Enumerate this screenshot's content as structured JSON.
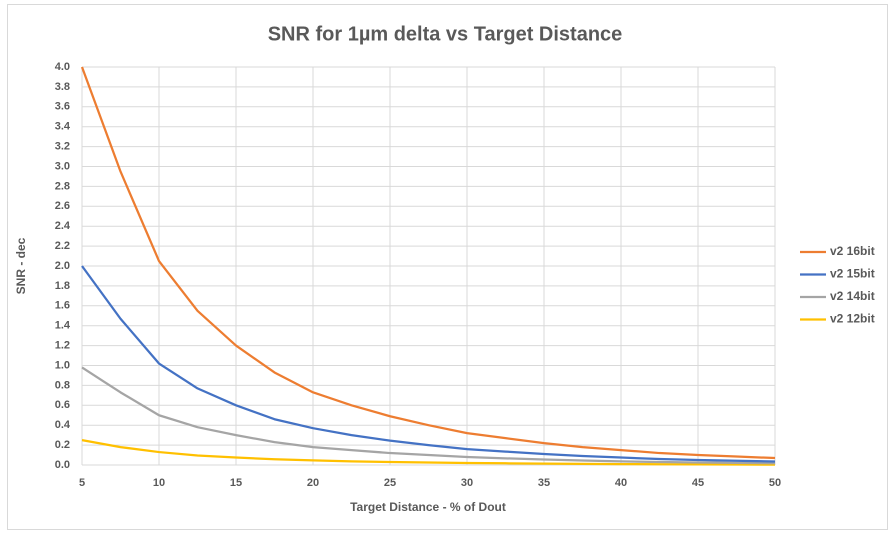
{
  "chart_data": {
    "type": "line",
    "title": "SNR for 1µm delta vs Target Distance",
    "x_label": "Target Distance - % of Dout",
    "y_label": "SNR - dec",
    "x": [
      5,
      7.5,
      10,
      12.5,
      15,
      17.5,
      20,
      22.5,
      25,
      27.5,
      30,
      32.5,
      35,
      37.5,
      40,
      42.5,
      45,
      47.5,
      50
    ],
    "series": [
      {
        "name": "v2 16bit",
        "color": "#ed7d31",
        "values": [
          4.0,
          2.95,
          2.05,
          1.55,
          1.2,
          0.93,
          0.73,
          0.6,
          0.49,
          0.4,
          0.32,
          0.27,
          0.22,
          0.18,
          0.15,
          0.12,
          0.1,
          0.085,
          0.07
        ]
      },
      {
        "name": "v2 15bit",
        "color": "#4472c4",
        "values": [
          2.0,
          1.47,
          1.02,
          0.77,
          0.6,
          0.46,
          0.37,
          0.3,
          0.245,
          0.2,
          0.16,
          0.135,
          0.11,
          0.09,
          0.075,
          0.06,
          0.05,
          0.043,
          0.035
        ]
      },
      {
        "name": "v2 14bit",
        "color": "#a5a5a5",
        "values": [
          0.98,
          0.73,
          0.5,
          0.38,
          0.3,
          0.23,
          0.18,
          0.15,
          0.12,
          0.1,
          0.08,
          0.067,
          0.055,
          0.045,
          0.037,
          0.03,
          0.025,
          0.021,
          0.018
        ]
      },
      {
        "name": "v2 12bit",
        "color": "#ffc000",
        "values": [
          0.25,
          0.18,
          0.13,
          0.095,
          0.075,
          0.058,
          0.046,
          0.037,
          0.03,
          0.025,
          0.02,
          0.017,
          0.014,
          0.011,
          0.009,
          0.008,
          0.006,
          0.005,
          0.004
        ]
      }
    ],
    "xlim": [
      5,
      50
    ],
    "xticks": [
      5,
      10,
      15,
      20,
      25,
      30,
      35,
      40,
      45,
      50
    ],
    "ylim": [
      0,
      4
    ],
    "yticks": [
      {
        "value": 0,
        "label": "0.0"
      },
      0.2,
      0.4,
      0.6,
      0.8,
      {
        "value": 1,
        "label": "1.0"
      },
      1.2,
      1.4,
      1.6,
      1.8,
      {
        "value": 2,
        "label": "2.0"
      },
      2.2,
      2.4,
      2.6,
      2.8,
      {
        "value": 3,
        "label": "3.0"
      },
      3.2,
      3.4,
      3.6,
      3.8,
      {
        "value": 4,
        "label": "4.0"
      }
    ],
    "grid": true,
    "legend": "right"
  }
}
